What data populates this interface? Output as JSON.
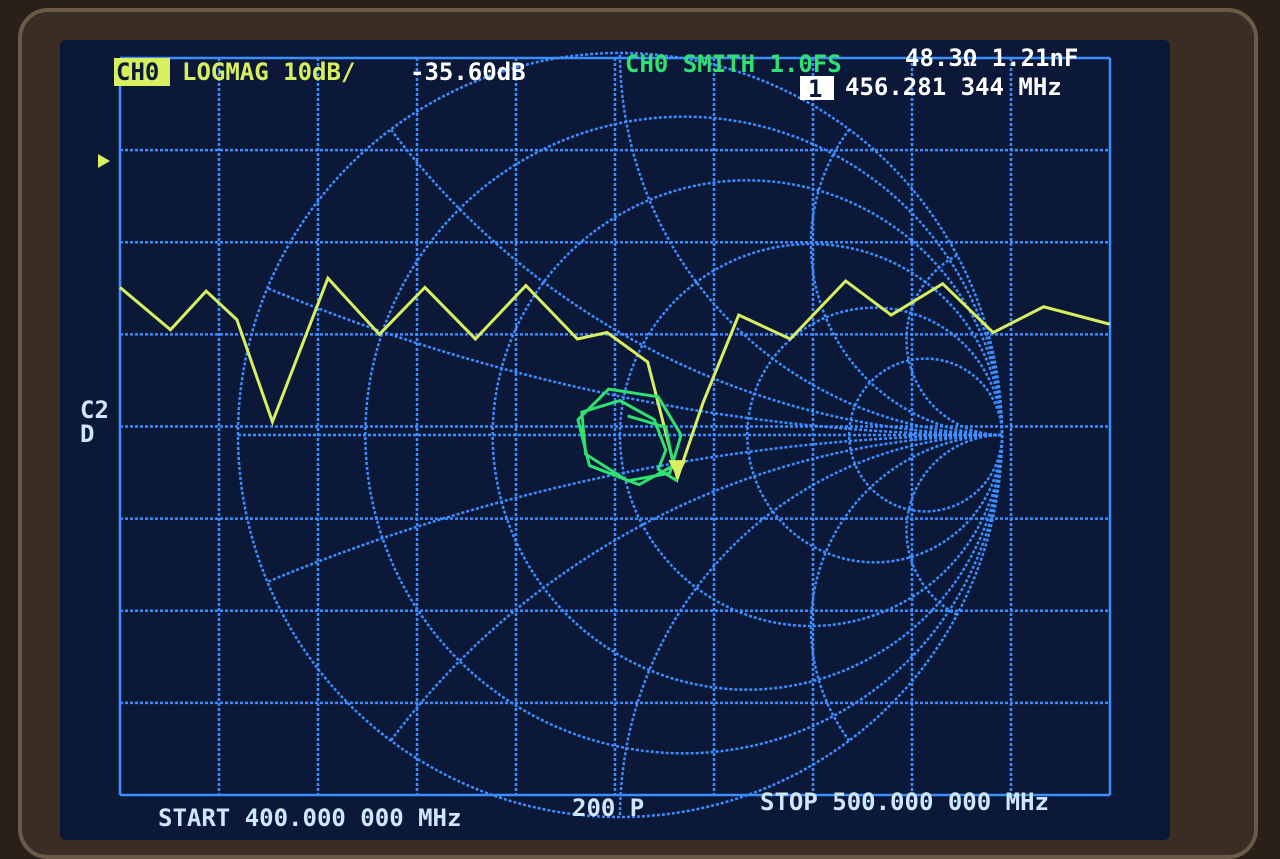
{
  "header": {
    "ch0_label": "CH0",
    "trace1_label": "LOGMAG 10dB/",
    "trace1_value": "-35.60dB",
    "trace2_label": "CH0 SMITH 1.0FS",
    "trace2_value": "48.3Ω 1.21nF",
    "marker_id": "1",
    "marker_freq": "456.281 344 MHz"
  },
  "side_label_1": "C2",
  "side_label_2": "D",
  "footer": {
    "start": "START 400.000 000 MHz",
    "points": "200 P",
    "stop": "STOP 500.000 000 MHz"
  },
  "colors": {
    "grid": "#3d8dff",
    "logmag_trace": "#d8f060",
    "smith_trace": "#30e070",
    "background": "#0b1838",
    "text": "#cfe8ff"
  },
  "chart_data": [
    {
      "type": "line",
      "format": "LOGMAG",
      "scale_db_per_div": 10,
      "reference_db": 0,
      "xlim": [
        400,
        500
      ],
      "xunit": "MHz",
      "grid": true,
      "x": [
        400,
        405.1,
        408.7,
        411.8,
        415.4,
        421,
        426.2,
        430.8,
        435.9,
        441,
        446.2,
        449.2,
        453.3,
        456.3,
        458.9,
        462.5,
        467.7,
        473.3,
        477.9,
        483.1,
        488.2,
        493.3,
        500
      ],
      "y": [
        -14.9,
        -19.5,
        -15.3,
        -18.4,
        -29.5,
        -13.9,
        -20,
        -14.9,
        -20.5,
        -14.7,
        -20.5,
        -19.8,
        -23,
        -35.6,
        -27.4,
        -17.9,
        -20.5,
        -14.2,
        -17.9,
        -14.5,
        -19.8,
        -17,
        -18.9
      ]
    },
    {
      "type": "scatter",
      "format": "SMITH",
      "full_scale": 1.0,
      "gamma_re": [
        0.02,
        0.12,
        0.14,
        0.05,
        -0.08,
        -0.11,
        -0.03,
        0.1,
        0.16,
        0.13,
        0.02,
        -0.09,
        -0.1,
        0.0,
        0.09,
        0.12,
        0.1,
        0.15
      ],
      "gamma_im": [
        0.05,
        0.02,
        -0.08,
        -0.13,
        -0.08,
        0.04,
        0.12,
        0.1,
        0.0,
        -0.1,
        -0.12,
        -0.05,
        0.06,
        0.09,
        0.04,
        -0.04,
        -0.09,
        -0.12
      ]
    }
  ]
}
